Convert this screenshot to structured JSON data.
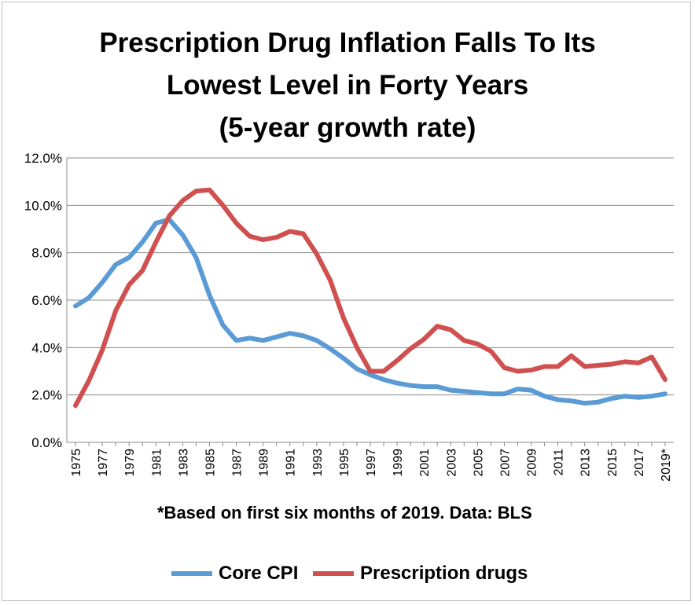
{
  "chart_data": {
    "type": "line",
    "title": "Prescription Drug Inflation Falls To Its Lowest Level in Forty Years",
    "subtitle": "(5-year growth rate)",
    "footnote": "*Based on first six months of 2019.  Data: BLS",
    "xlabel": "",
    "ylabel": "",
    "ylim": [
      0,
      12
    ],
    "y_ticks": [
      "0.0%",
      "2.0%",
      "4.0%",
      "6.0%",
      "8.0%",
      "10.0%",
      "12.0%"
    ],
    "x_tick_labels": [
      "1975",
      "1977",
      "1979",
      "1981",
      "1983",
      "1985",
      "1987",
      "1989",
      "1991",
      "1993",
      "1995",
      "1997",
      "1999",
      "2001",
      "2003",
      "2005",
      "2007",
      "2009",
      "2011",
      "2013",
      "2015",
      "2017",
      "2019*"
    ],
    "x": [
      1975,
      1976,
      1977,
      1978,
      1979,
      1980,
      1981,
      1982,
      1983,
      1984,
      1985,
      1986,
      1987,
      1988,
      1989,
      1990,
      1991,
      1992,
      1993,
      1994,
      1995,
      1996,
      1997,
      1998,
      1999,
      2000,
      2001,
      2002,
      2003,
      2004,
      2005,
      2006,
      2007,
      2008,
      2009,
      2010,
      2011,
      2012,
      2013,
      2014,
      2015,
      2016,
      2017,
      2018,
      2019
    ],
    "series": [
      {
        "name": "Core CPI",
        "color": "#5b9bd5",
        "values": [
          5.75,
          6.1,
          6.75,
          7.5,
          7.8,
          8.45,
          9.25,
          9.4,
          8.75,
          7.8,
          6.2,
          4.95,
          4.3,
          4.4,
          4.3,
          4.45,
          4.6,
          4.5,
          4.3,
          3.95,
          3.55,
          3.1,
          2.85,
          2.65,
          2.5,
          2.4,
          2.35,
          2.35,
          2.2,
          2.15,
          2.1,
          2.05,
          2.05,
          2.25,
          2.2,
          1.95,
          1.8,
          1.75,
          1.65,
          1.7,
          1.85,
          1.95,
          1.9,
          1.95,
          2.05
        ]
      },
      {
        "name": "Prescription drugs",
        "color": "#d0504f",
        "values": [
          1.55,
          2.6,
          3.9,
          5.55,
          6.65,
          7.25,
          8.45,
          9.55,
          10.2,
          10.6,
          10.65,
          10.0,
          9.25,
          8.7,
          8.55,
          8.65,
          8.9,
          8.8,
          7.95,
          6.85,
          5.25,
          4.0,
          3.0,
          3.0,
          3.45,
          3.95,
          4.35,
          4.9,
          4.75,
          4.3,
          4.15,
          3.85,
          3.15,
          3.0,
          3.05,
          3.2,
          3.2,
          3.65,
          3.2,
          3.25,
          3.3,
          3.4,
          3.35,
          3.6,
          2.65
        ]
      }
    ],
    "grid": true,
    "legend_position": "bottom"
  }
}
